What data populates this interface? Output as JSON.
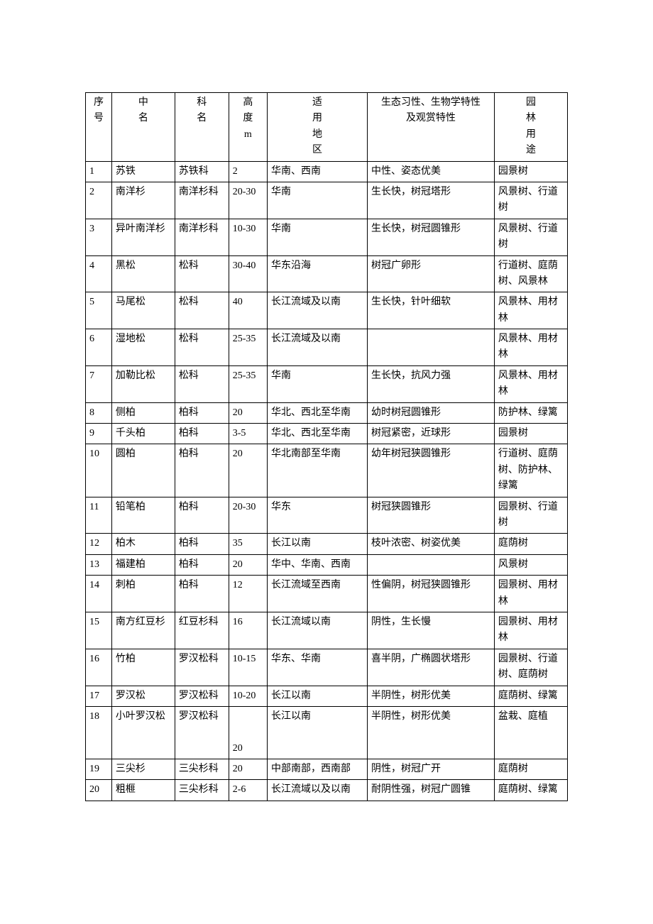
{
  "table": {
    "headers": {
      "id": "序\n号",
      "name": "中\n名",
      "family": "科\n名",
      "height": "高\n度\nm",
      "region": "适\n用\n地\n区",
      "characteristics": "生态习性、生物学特性\n及观赏特性",
      "use": "园\n林\n用\n途"
    },
    "rows": [
      {
        "id": "1",
        "name": "苏铁",
        "family": "苏铁科",
        "height": "2",
        "region": "华南、西南",
        "char": "中性、姿态优美",
        "use": "园景树"
      },
      {
        "id": "2",
        "name": "南洋杉",
        "family": "南洋杉科",
        "height": "20-30",
        "region": "华南",
        "char": "生长快，树冠塔形",
        "use": "风景树、行道树"
      },
      {
        "id": "3",
        "name": "异叶南洋杉",
        "family": "南洋杉科",
        "height": "10-30",
        "region": "华南",
        "char": "生长快，树冠圆锥形",
        "use": "风景树、行道树"
      },
      {
        "id": "4",
        "name": "黑松",
        "family": "松科",
        "height": "30-40",
        "region": "华东沿海",
        "char": "树冠广卵形",
        "use": "行道树、庭荫树、风景林"
      },
      {
        "id": "5",
        "name": "马尾松",
        "family": "松科",
        "height": "40",
        "region": "长江流域及以南",
        "char": "生长快，针叶细软",
        "use": "风景林、用材林"
      },
      {
        "id": "6",
        "name": "湿地松",
        "family": "松科",
        "height": "25-35",
        "region": "长江流域及以南",
        "char": "",
        "use": "风景林、用材林"
      },
      {
        "id": "7",
        "name": "加勒比松",
        "family": "松科",
        "height": "25-35",
        "region": "华南",
        "char": "生长快，抗风力强",
        "use": "风景林、用材林"
      },
      {
        "id": "8",
        "name": "侧柏",
        "family": "柏科",
        "height": "20",
        "region": "华北、西北至华南",
        "char": "幼时树冠圆锥形",
        "use": "防护林、绿篱"
      },
      {
        "id": "9",
        "name": "千头柏",
        "family": "柏科",
        "height": "3-5",
        "region": "华北、西北至华南",
        "char": "树冠紧密，近球形",
        "use": "园景树"
      },
      {
        "id": "10",
        "name": "圆柏",
        "family": "柏科",
        "height": "20",
        "region": "华北南部至华南",
        "char": "幼年树冠狭圆锥形",
        "use": "行道树、庭荫树、防护林、绿篱"
      },
      {
        "id": "11",
        "name": "铅笔柏",
        "family": "柏科",
        "height": "20-30",
        "region": "华东",
        "char": "树冠狭圆锥形",
        "use": "园景树、行道树"
      },
      {
        "id": "12",
        "name": "柏木",
        "family": "柏科",
        "height": "35",
        "region": "长江以南",
        "char": "枝叶浓密、树姿优美",
        "use": "庭荫树"
      },
      {
        "id": "13",
        "name": "福建柏",
        "family": "柏科",
        "height": "20",
        "region": "华中、华南、西南",
        "char": "",
        "use": "风景树"
      },
      {
        "id": "14",
        "name": "刺柏",
        "family": "柏科",
        "height": "12",
        "region": "长江流域至西南",
        "char": "性偏阴，树冠狭圆锥形",
        "use": "园景树、用材林"
      },
      {
        "id": "15",
        "name": "南方红豆杉",
        "family": "红豆杉科",
        "height": "16",
        "region": "长江流域以南",
        "char": "阴性，生长慢",
        "use": "园景树、用材林"
      },
      {
        "id": "16",
        "name": "竹柏",
        "family": "罗汉松科",
        "height": "10-15",
        "region": "华东、华南",
        "char": "喜半阴，广椭圆状塔形",
        "use": "园景树、行道树、庭荫树"
      },
      {
        "id": "17",
        "name": "罗汉松",
        "family": "罗汉松科",
        "height": "10-20",
        "region": "长江以南",
        "char": "半阴性，树形优美",
        "use": "庭荫树、绿篱"
      },
      {
        "id": "18",
        "name": "小叶罗汉松",
        "family": "罗汉松科",
        "height": "\n\n20",
        "region": "长江以南",
        "char": "半阴性，树形优美",
        "use": "盆栽、庭植"
      },
      {
        "id": "19",
        "name": "三尖杉",
        "family": "三尖杉科",
        "height": "20",
        "region": "中部南部，西南部",
        "char": "阴性，树冠广开",
        "use": "庭荫树"
      },
      {
        "id": "20",
        "name": "粗榧",
        "family": "三尖杉科",
        "height": "2-6",
        "region": "长江流域以及以南",
        "char": "耐阴性强，树冠广圆锥",
        "use": "庭荫树、绿篱"
      }
    ],
    "styling": {
      "border_color": "#000000",
      "background_color": "#ffffff",
      "text_color": "#000000",
      "font_family": "SimSun",
      "font_size": 14,
      "line_height": 1.6,
      "col_widths": {
        "id": 34,
        "name": 82,
        "family": 70,
        "height": 50,
        "region": 130,
        "char": 165,
        "use": 95
      }
    }
  }
}
